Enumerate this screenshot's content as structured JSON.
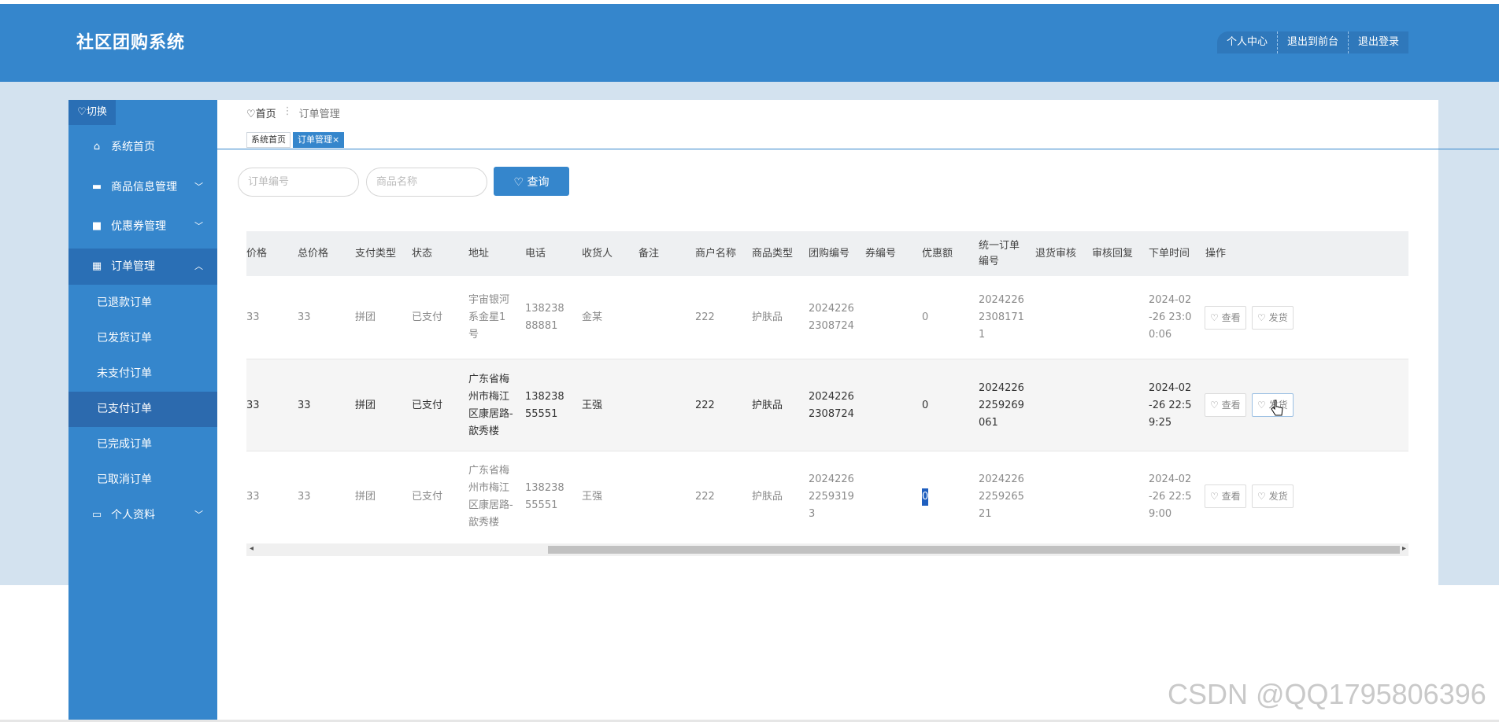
{
  "app": {
    "title": "社区团购系统"
  },
  "topnav": [
    "个人中心",
    "退出到前台",
    "退出登录"
  ],
  "sidebar": {
    "switch_label": "♡切换",
    "items": [
      {
        "label": "系统首页",
        "icon": "home-icon"
      },
      {
        "label": "商品信息管理",
        "icon": "ticket-icon"
      },
      {
        "label": "优惠券管理",
        "icon": "briefcase-icon"
      },
      {
        "label": "订单管理",
        "icon": "grid-icon"
      },
      {
        "label": "个人资料",
        "icon": "card-icon"
      }
    ],
    "subitems": [
      "已退款订单",
      "已发货订单",
      "未支付订单",
      "已支付订单",
      "已完成订单",
      "已取消订单"
    ]
  },
  "breadcrumb": {
    "home": "♡首页",
    "sep": "⋮",
    "current": "订单管理"
  },
  "tabs": [
    "系统首页",
    "订单管理×"
  ],
  "search": {
    "order_no_placeholder": "订单编号",
    "product_name_placeholder": "商品名称",
    "button_label": "♡ 查询"
  },
  "table": {
    "headers": [
      "价格",
      "总价格",
      "支付类型",
      "状态",
      "地址",
      "电话",
      "收货人",
      "备注",
      "商户名称",
      "商品类型",
      "团购编号",
      "券编号",
      "优惠额",
      "统一订单编号",
      "退货审核",
      "审核回复",
      "下单时间",
      "操作"
    ],
    "rows": [
      {
        "price": "33",
        "total": "33",
        "pay_type": "拼团",
        "status": "已支付",
        "address": "宇宙银河系金星1号",
        "phone": "13823888881",
        "receiver": "金某",
        "remark": "",
        "merchant": "222",
        "product_type": "护肤品",
        "group_no": "20242262308724",
        "coupon_no": "",
        "discount": "0",
        "order_no": "202422623081711",
        "return_audit": "",
        "audit_reply": "",
        "order_time": "2024-02-26 23:00:06"
      },
      {
        "price": "33",
        "total": "33",
        "pay_type": "拼团",
        "status": "已支付",
        "address": "广东省梅州市梅江区康居路-歆秀楼",
        "phone": "13823855551",
        "receiver": "王强",
        "remark": "",
        "merchant": "222",
        "product_type": "护肤品",
        "group_no": "20242262308724",
        "coupon_no": "",
        "discount": "0",
        "order_no": "20242262259269061",
        "return_audit": "",
        "audit_reply": "",
        "order_time": "2024-02-26 22:59:25"
      },
      {
        "price": "33",
        "total": "33",
        "pay_type": "拼团",
        "status": "已支付",
        "address": "广东省梅州市梅江区康居路-歆秀楼",
        "phone": "13823855551",
        "receiver": "王强",
        "remark": "",
        "merchant": "222",
        "product_type": "护肤品",
        "group_no": "202422622593193",
        "coupon_no": "",
        "discount": "0",
        "order_no": "2024226225926521",
        "return_audit": "",
        "audit_reply": "",
        "order_time": "2024-02-26 22:59:00"
      }
    ],
    "view_label": "♡ 查看",
    "ship_label": "♡ 发货"
  },
  "watermark": "CSDN @QQ1795806396"
}
